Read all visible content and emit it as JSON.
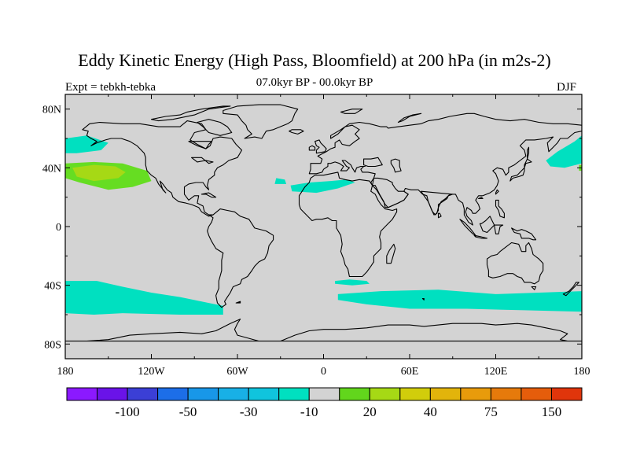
{
  "title": "Eddy Kinetic Energy (High Pass, Bloomfield) at 200 hPa (in m2s-2)",
  "left_label": "Expt = tebkh-tebka",
  "center_label": "07.0kyr BP - 00.0kyr BP",
  "right_label": "DJF",
  "colors": {
    "land_ocean": "#d3d3d3",
    "positive_20": "#66dd22",
    "positive_40": "#a6d915",
    "negative_10": "#00e0c0",
    "coast": "#000000"
  },
  "map": {
    "projection": "cylindrical-equidistant",
    "lon_range": [
      -180,
      180
    ],
    "lat_range": [
      -90,
      90
    ],
    "x_ticks": [
      {
        "value": -180,
        "label": "180"
      },
      {
        "value": -120,
        "label": "120W"
      },
      {
        "value": -60,
        "label": "60W"
      },
      {
        "value": 0,
        "label": "0"
      },
      {
        "value": 60,
        "label": "60E"
      },
      {
        "value": 120,
        "label": "120E"
      },
      {
        "value": 180,
        "label": "180"
      }
    ],
    "y_ticks": [
      {
        "value": 80,
        "label": "80N"
      },
      {
        "value": 40,
        "label": "40N"
      },
      {
        "value": 0,
        "label": "0"
      },
      {
        "value": -40,
        "label": "40S"
      },
      {
        "value": -80,
        "label": "80S"
      }
    ],
    "fields": [
      {
        "name": "north-pacific-negative",
        "level": -10,
        "color": "#00e0c0",
        "polygon": [
          [
            -180,
            60
          ],
          [
            -165,
            62
          ],
          [
            -150,
            57
          ],
          [
            -155,
            52
          ],
          [
            -172,
            50
          ],
          [
            -180,
            50
          ]
        ]
      },
      {
        "name": "west-pacific-negative",
        "level": -10,
        "color": "#00e0c0",
        "polygon": [
          [
            155,
            45
          ],
          [
            163,
            51
          ],
          [
            175,
            58
          ],
          [
            180,
            62
          ],
          [
            180,
            43
          ],
          [
            168,
            40
          ],
          [
            158,
            41
          ]
        ]
      },
      {
        "name": "north-pacific-positive-outer",
        "level": 20,
        "color": "#66dd22",
        "polygon": [
          [
            -180,
            43
          ],
          [
            -160,
            44
          ],
          [
            -140,
            43
          ],
          [
            -123,
            38
          ],
          [
            -120,
            31
          ],
          [
            -133,
            27
          ],
          [
            -150,
            25
          ],
          [
            -170,
            30
          ],
          [
            -180,
            33
          ]
        ]
      },
      {
        "name": "north-pacific-positive-inner",
        "level": 40,
        "color": "#a6d915",
        "polygon": [
          [
            -175,
            40
          ],
          [
            -160,
            42
          ],
          [
            -145,
            41
          ],
          [
            -138,
            37
          ],
          [
            -143,
            33
          ],
          [
            -160,
            31
          ],
          [
            -172,
            34
          ]
        ]
      },
      {
        "name": "atlantic-negative-small",
        "level": -10,
        "color": "#00e0c0",
        "polygon": [
          [
            -33,
            33
          ],
          [
            -27,
            32
          ],
          [
            -26,
            29
          ],
          [
            -34,
            29
          ]
        ]
      },
      {
        "name": "atlantic-negative-large",
        "level": -10,
        "color": "#00e0c0",
        "polygon": [
          [
            -23,
            28
          ],
          [
            -10,
            30
          ],
          [
            5,
            31
          ],
          [
            16,
            32
          ],
          [
            22,
            30
          ],
          [
            10,
            26
          ],
          [
            -5,
            23
          ],
          [
            -22,
            24
          ]
        ]
      },
      {
        "name": "southern-ocean-negative-west",
        "level": -10,
        "color": "#00e0c0",
        "polygon": [
          [
            -180,
            -37
          ],
          [
            -158,
            -37
          ],
          [
            -140,
            -41
          ],
          [
            -120,
            -45
          ],
          [
            -100,
            -48
          ],
          [
            -80,
            -52
          ],
          [
            -70,
            -54
          ],
          [
            -70,
            -60
          ],
          [
            -100,
            -60
          ],
          [
            -140,
            -59
          ],
          [
            -160,
            -60
          ],
          [
            -180,
            -59
          ]
        ]
      },
      {
        "name": "southern-ocean-negative-small",
        "level": -10,
        "color": "#00e0c0",
        "polygon": [
          [
            8,
            -37
          ],
          [
            18,
            -36
          ],
          [
            30,
            -37
          ],
          [
            32,
            -39
          ],
          [
            20,
            -40
          ],
          [
            8,
            -39
          ]
        ]
      },
      {
        "name": "southern-ocean-negative-east",
        "level": -10,
        "color": "#00e0c0",
        "polygon": [
          [
            10,
            -46
          ],
          [
            40,
            -44
          ],
          [
            80,
            -43
          ],
          [
            120,
            -46
          ],
          [
            150,
            -45
          ],
          [
            180,
            -44
          ],
          [
            180,
            -58
          ],
          [
            140,
            -57
          ],
          [
            100,
            -56
          ],
          [
            60,
            -56
          ],
          [
            30,
            -53
          ],
          [
            10,
            -50
          ]
        ]
      },
      {
        "name": "east-pacific-edge-positive",
        "level": 20,
        "color": "#66dd22",
        "polygon": [
          [
            178,
            42
          ],
          [
            180,
            42
          ],
          [
            180,
            38
          ],
          [
            178,
            38
          ]
        ]
      }
    ]
  },
  "colorbar": {
    "colors": [
      "#8b19ff",
      "#6a13e8",
      "#3b3fd6",
      "#1c6ee8",
      "#1897e8",
      "#18b0e6",
      "#10c4dd",
      "#00e0c0",
      "#d3d3d3",
      "#62d61c",
      "#a6d915",
      "#d1cd0b",
      "#e2b40b",
      "#e89b0b",
      "#e67a0b",
      "#e55d0b",
      "#e0350b"
    ],
    "labels": [
      {
        "after_box": 2,
        "text": "-100"
      },
      {
        "after_box": 4,
        "text": "-50"
      },
      {
        "after_box": 6,
        "text": "-30"
      },
      {
        "after_box": 8,
        "text": "-10"
      },
      {
        "after_box": 10,
        "text": "20"
      },
      {
        "after_box": 12,
        "text": "40"
      },
      {
        "after_box": 14,
        "text": "75"
      },
      {
        "after_box": 16,
        "text": "150"
      }
    ]
  }
}
